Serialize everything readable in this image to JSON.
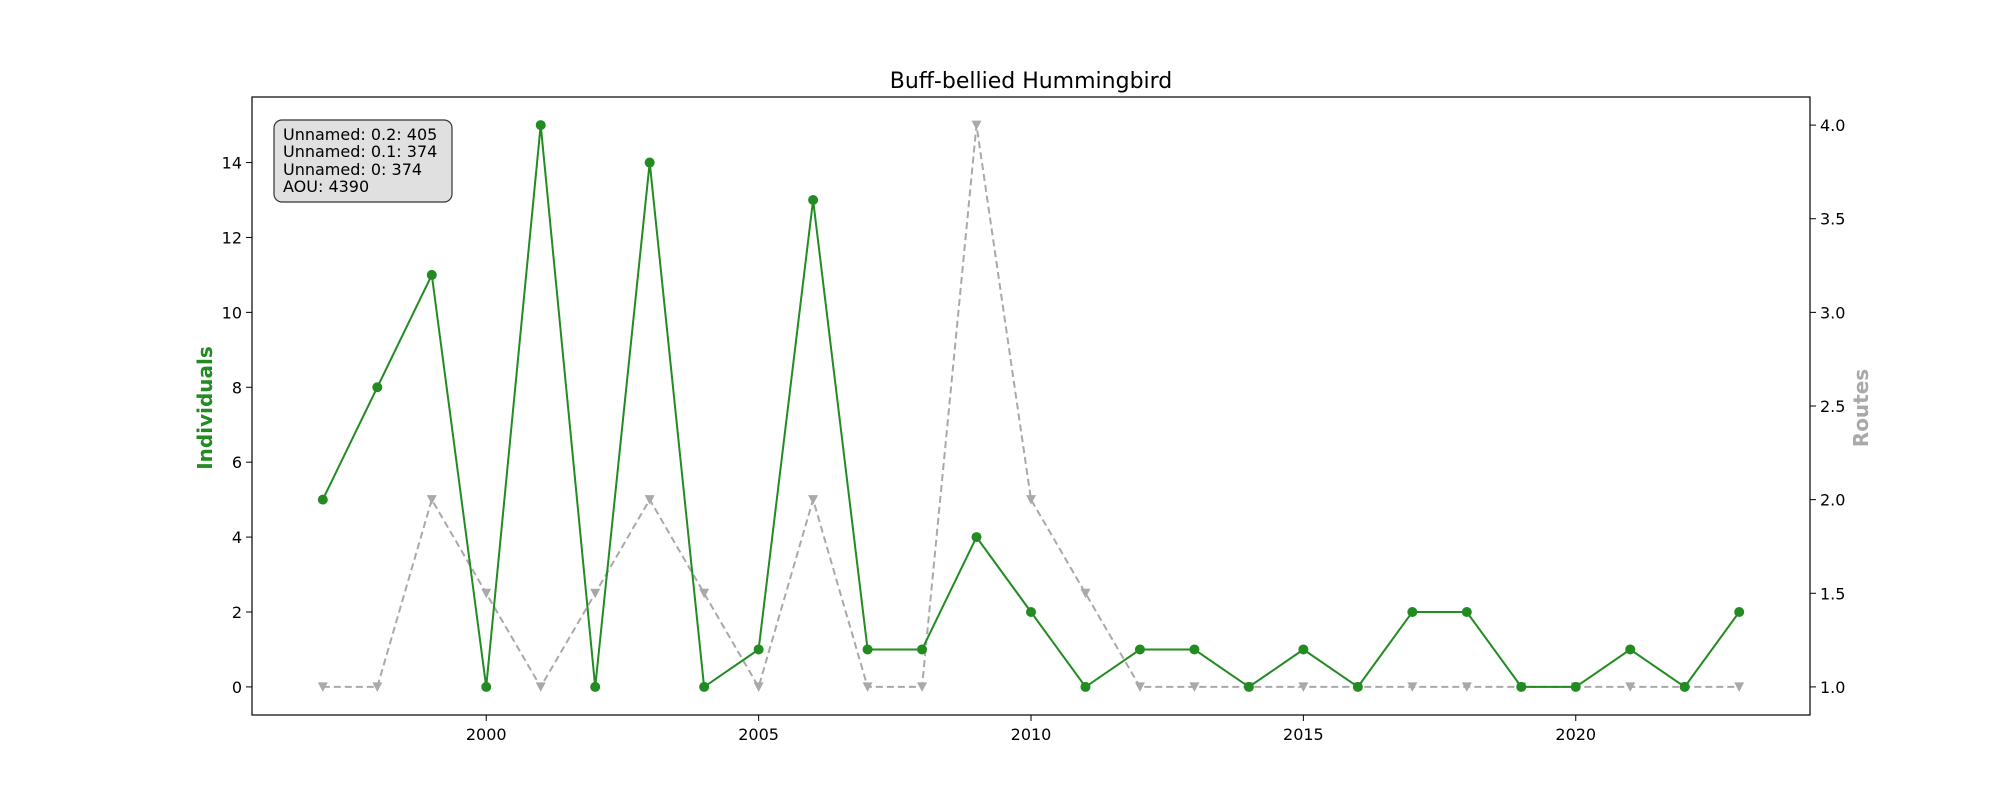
{
  "chart_data": {
    "type": "line",
    "title": "Buff-bellied Hummingbird",
    "xlabel": "",
    "ylabel_left": "Individuals",
    "ylabel_right": "Routes",
    "x": [
      1997,
      1998,
      1999,
      2000,
      2001,
      2002,
      2003,
      2004,
      2005,
      2006,
      2007,
      2008,
      2009,
      2010,
      2011,
      2012,
      2013,
      2014,
      2015,
      2016,
      2017,
      2018,
      2019,
      2020,
      2021,
      2022,
      2023
    ],
    "xlim": [
      1995.7,
      2024.3
    ],
    "xticks": [
      2000,
      2005,
      2010,
      2015,
      2020
    ],
    "ylim_left": [
      -0.75,
      15.75
    ],
    "yticks_left": [
      0,
      2,
      4,
      6,
      8,
      10,
      12,
      14
    ],
    "ylim_right": [
      0.85,
      4.15
    ],
    "yticks_right": [
      1.0,
      1.5,
      2.0,
      2.5,
      3.0,
      3.5,
      4.0
    ],
    "yticks_right_labels": [
      "1.0",
      "1.5",
      "2.0",
      "2.5",
      "3.0",
      "3.5",
      "4.0"
    ],
    "series": [
      {
        "name": "Individuals",
        "axis": "left",
        "color": "#228b22",
        "style": "solid",
        "marker": "circle",
        "values": [
          5,
          8,
          11,
          0,
          15,
          0,
          14,
          0,
          1,
          13,
          1,
          1,
          4,
          2,
          0,
          1,
          1,
          0,
          1,
          0,
          2,
          2,
          0,
          0,
          1,
          0,
          2
        ]
      },
      {
        "name": "Routes",
        "axis": "right",
        "color": "#a9a9a9",
        "style": "dashed",
        "marker": "triangle-down",
        "values": [
          1,
          1,
          2,
          1.5,
          1,
          1.5,
          2,
          1.5,
          1,
          2,
          1,
          1,
          4,
          2,
          1.5,
          1,
          1,
          1,
          1,
          1,
          1,
          1,
          1,
          1,
          1,
          1,
          1
        ]
      }
    ],
    "info_box": [
      "Unnamed: 0.2: 405",
      "Unnamed: 0.1: 374",
      "Unnamed: 0: 374",
      "AOU: 4390"
    ]
  }
}
